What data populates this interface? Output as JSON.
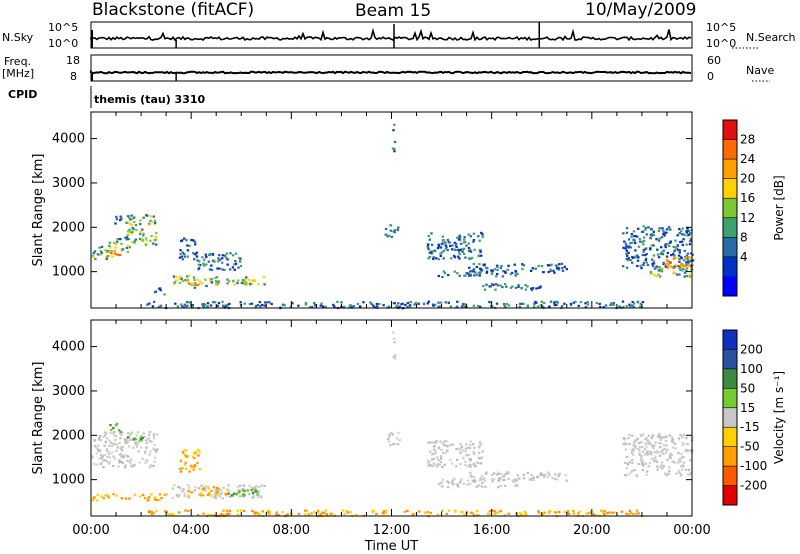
{
  "header": {
    "title": "Blackstone (fitACF)",
    "beam": "Beam 15",
    "date": "10/May/2009"
  },
  "panels": {
    "nsky_label": "N.Sky",
    "nsearch_label": "N.Search",
    "sky_top_tick": "10^5",
    "sky_bottom_tick": "10^0",
    "search_top_tick": "10^5",
    "search_bottom_tick": "10^0",
    "freq_label": "Freq.",
    "freq_unit": "[MHz]",
    "freq_top_tick": "18",
    "freq_bottom_tick": "8",
    "nave_label": "Nave",
    "nave_top_tick": "60",
    "nave_bottom_tick": "0",
    "cpid_label": "CPID",
    "cpid_value": "themis (tau) 3310"
  },
  "colorbars": {
    "power": {
      "label": "Power [dB]",
      "ticks": [
        "28",
        "24",
        "20",
        "16",
        "12",
        "8",
        "4"
      ],
      "colors": [
        "#e01010",
        "#ff6a00",
        "#ffa200",
        "#ffd200",
        "#7cc832",
        "#3fa070",
        "#2a6aa8",
        "#0030c8",
        "#0000ff"
      ]
    },
    "velocity": {
      "label": "Velocity [m s⁻¹]",
      "ticks": [
        "200",
        "100",
        "50",
        "15",
        "-15",
        "-50",
        "-100",
        "-200"
      ],
      "colors": [
        "#1030c0",
        "#2a50a0",
        "#3a8a40",
        "#74cc30",
        "#c8c8c8",
        "#ffd000",
        "#ffa000",
        "#ff5a00",
        "#e00000"
      ]
    }
  },
  "chart_data": {
    "type": "heatmap",
    "xlabel": "Time UT",
    "x_ticks": [
      "00:00",
      "04:00",
      "08:00",
      "12:00",
      "16:00",
      "20:00",
      "00:00"
    ],
    "xlim_hours": [
      0,
      24
    ],
    "ylabel": "Slant Range [km]",
    "y_ticks": [
      1000,
      2000,
      3000,
      4000
    ],
    "ylim_km": [
      180,
      4600
    ],
    "panels": [
      {
        "name": "Power",
        "units": "dB",
        "scale": [
          0,
          30
        ],
        "patches": [
          {
            "t": [
              0.0,
              0.6
            ],
            "r": [
              1300,
              1600
            ],
            "level": "mid"
          },
          {
            "t": [
              0.3,
              1.2
            ],
            "r": [
              1350,
              1500
            ],
            "level": "high"
          },
          {
            "t": [
              0.6,
              1.6
            ],
            "r": [
              1450,
              1700
            ],
            "level": "mid"
          },
          {
            "t": [
              1.4,
              2.6
            ],
            "r": [
              1600,
              2300
            ],
            "level": "mid"
          },
          {
            "t": [
              0.9,
              1.4
            ],
            "r": [
              2100,
              2300
            ],
            "level": "low"
          },
          {
            "t": [
              1.0,
              1.5
            ],
            "r": [
              1750,
              1800
            ],
            "level": "low"
          },
          {
            "t": [
              3.2,
              4.1
            ],
            "r": [
              650,
              950
            ],
            "level": "mid"
          },
          {
            "t": [
              4.0,
              6.9
            ],
            "r": [
              700,
              900
            ],
            "level": "mid"
          },
          {
            "t": [
              3.6,
              5.3
            ],
            "r": [
              720,
              760
            ],
            "level": "high"
          },
          {
            "t": [
              3.5,
              4.2
            ],
            "r": [
              1300,
              1800
            ],
            "level": "low"
          },
          {
            "t": [
              4.2,
              6.0
            ],
            "r": [
              1050,
              1450
            ],
            "level": "low"
          },
          {
            "t": [
              2.5,
              3.0
            ],
            "r": [
              500,
              650
            ],
            "level": "low"
          },
          {
            "t": [
              2.2,
              22.0
            ],
            "r": [
              200,
              350
            ],
            "level": "low"
          },
          {
            "t": [
              12.0,
              12.1
            ],
            "r": [
              3700,
              4400
            ],
            "level": "low"
          },
          {
            "t": [
              11.7,
              12.3
            ],
            "r": [
              1800,
              2100
            ],
            "level": "low"
          },
          {
            "t": [
              13.4,
              15.6
            ],
            "r": [
              1300,
              1900
            ],
            "level": "low"
          },
          {
            "t": [
              13.8,
              17.0
            ],
            "r": [
              900,
              1050
            ],
            "level": "low"
          },
          {
            "t": [
              15.0,
              19.0
            ],
            "r": [
              1000,
              1200
            ],
            "level": "low"
          },
          {
            "t": [
              15.5,
              18.0
            ],
            "r": [
              600,
              750
            ],
            "level": "low"
          },
          {
            "t": [
              21.2,
              24.0
            ],
            "r": [
              1100,
              2050
            ],
            "level": "low"
          },
          {
            "t": [
              22.8,
              24.0
            ],
            "r": [
              1100,
              1350
            ],
            "level": "high"
          },
          {
            "t": [
              22.3,
              24.0
            ],
            "r": [
              900,
              1150
            ],
            "level": "mid"
          }
        ]
      },
      {
        "name": "Velocity",
        "units": "m s-1",
        "scale": [
          -200,
          200
        ],
        "patches": [
          {
            "t": [
              0.0,
              2.6
            ],
            "r": [
              1300,
              2100
            ],
            "level": "gs"
          },
          {
            "t": [
              0.7,
              1.2
            ],
            "r": [
              2100,
              2300
            ],
            "level": "pos"
          },
          {
            "t": [
              1.4,
              2.2
            ],
            "r": [
              1900,
              2050
            ],
            "level": "pos"
          },
          {
            "t": [
              3.2,
              6.9
            ],
            "r": [
              600,
              900
            ],
            "level": "gs"
          },
          {
            "t": [
              3.8,
              5.4
            ],
            "r": [
              650,
              850
            ],
            "level": "neg"
          },
          {
            "t": [
              5.3,
              6.6
            ],
            "r": [
              620,
              800
            ],
            "level": "pos"
          },
          {
            "t": [
              3.5,
              4.3
            ],
            "r": [
              1200,
              1700
            ],
            "level": "neg"
          },
          {
            "t": [
              0.0,
              3.0
            ],
            "r": [
              550,
              700
            ],
            "level": "neg"
          },
          {
            "t": [
              2.2,
              22.0
            ],
            "r": [
              200,
              330
            ],
            "level": "neg"
          },
          {
            "t": [
              12.0,
              12.1
            ],
            "r": [
              3700,
              4400
            ],
            "level": "gs"
          },
          {
            "t": [
              11.7,
              12.3
            ],
            "r": [
              1800,
              2100
            ],
            "level": "gs"
          },
          {
            "t": [
              13.4,
              15.6
            ],
            "r": [
              1300,
              1900
            ],
            "level": "gs"
          },
          {
            "t": [
              13.8,
              17.0
            ],
            "r": [
              850,
              1050
            ],
            "level": "gs"
          },
          {
            "t": [
              15.0,
              19.0
            ],
            "r": [
              1000,
              1200
            ],
            "level": "gs"
          },
          {
            "t": [
              21.2,
              24.0
            ],
            "r": [
              1100,
              2050
            ],
            "level": "gs"
          }
        ]
      }
    ]
  }
}
